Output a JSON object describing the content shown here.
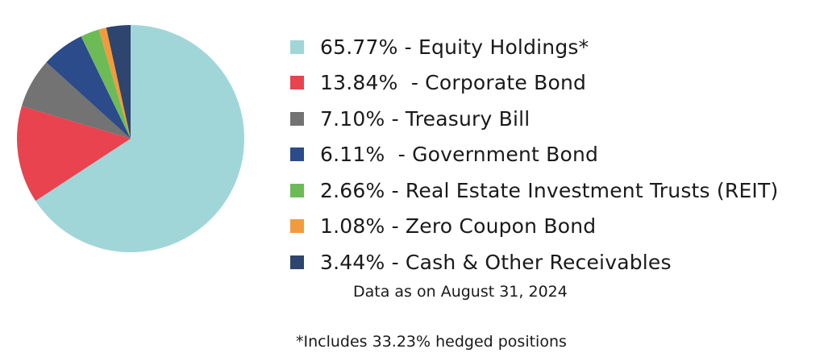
{
  "chart_data": {
    "type": "pie",
    "categories": [
      "Equity Holdings*",
      "Corporate Bond",
      "Treasury Bill",
      "Government Bond",
      "Real Estate Investment Trusts (REIT)",
      "Zero Coupon Bond",
      "Cash & Other Receivables"
    ],
    "values": [
      65.77,
      13.84,
      7.1,
      6.11,
      2.66,
      1.08,
      3.44
    ],
    "colors": [
      "#a1d6d9",
      "#e8434f",
      "#737373",
      "#2b4b8a",
      "#6dbb56",
      "#f39a3f",
      "#2d456f"
    ],
    "legend_labels": [
      "65.77% - Equity Holdings*",
      "13.84%  - Corporate Bond",
      "7.10% - Treasury Bill",
      "6.11%  - Government Bond",
      "2.66% - Real Estate Investment Trusts (REIT)",
      "1.08% - Zero Coupon Bond",
      "3.44% - Cash & Other Receivables"
    ],
    "legend_position": "right",
    "start": "top",
    "direction": "clockwise",
    "title": ""
  },
  "notes": {
    "data_as_on": "Data as on August 31, 2024",
    "footnote": "*Includes 33.23% hedged positions"
  }
}
